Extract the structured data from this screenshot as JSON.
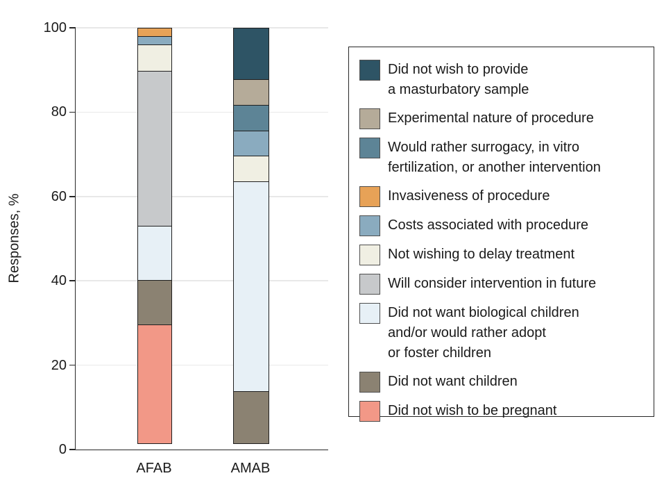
{
  "figure": {
    "y_axis_label": "Responses, %",
    "y_ticks": [
      100,
      80,
      60,
      40,
      20,
      0
    ],
    "x_categories": [
      "AFAB",
      "AMAB"
    ]
  },
  "chart_data": {
    "type": "bar",
    "subtype": "stacked-vertical",
    "title": "",
    "xlabel": "",
    "ylabel": "Responses, %",
    "ylim": [
      0,
      100
    ],
    "grid": "horizontal-light",
    "legend_position": "right",
    "categories": [
      "AFAB",
      "AMAB"
    ],
    "stack_order_note": "series listed top-of-bar to bottom-of-bar; values are percent of responses",
    "series": [
      {
        "name": "Did not wish to provide a masturbatory sample",
        "label": "Did not wish to provide\na masturbatory sample",
        "color": "#2e5465",
        "values": [
          0,
          12.5
        ]
      },
      {
        "name": "Experimental nature of procedure",
        "label": "Experimental nature of procedure",
        "color": "#b5ab99",
        "values": [
          0,
          6.25
        ]
      },
      {
        "name": "Would rather surrogacy, in vitro fertilization, or another intervention",
        "label": "Would rather surrogacy, in vitro\nfertilization, or another intervention",
        "color": "#5d8496",
        "values": [
          0,
          6.25
        ]
      },
      {
        "name": "Invasiveness of procedure",
        "label": "Invasiveness of procedure",
        "color": "#e7a257",
        "values": [
          2.2,
          0
        ]
      },
      {
        "name": "Costs associated with procedure",
        "label": "Costs associated with procedure",
        "color": "#8aabbf",
        "values": [
          2.2,
          6.25
        ]
      },
      {
        "name": "Not wishing to delay treatment",
        "label": "Not wishing to delay treatment",
        "color": "#f0efe3",
        "values": [
          6.5,
          6.25
        ]
      },
      {
        "name": "Will consider intervention in future",
        "label": "Will consider intervention in future",
        "color": "#c7c9cb",
        "values": [
          37.0,
          0
        ]
      },
      {
        "name": "Did not want biological children and/or would rather adopt or foster children",
        "label": "Did not want biological children\nand/or would rather adopt\nor foster children",
        "color": "#e7f0f6",
        "values": [
          13.0,
          50.0
        ]
      },
      {
        "name": "Did not want children",
        "label": "Did not want children",
        "color": "#8b8272",
        "values": [
          10.9,
          12.5
        ]
      },
      {
        "name": "Did not wish to be pregnant",
        "label": "Did not wish to be pregnant",
        "color": "#f29887",
        "values": [
          28.2,
          0
        ]
      }
    ]
  }
}
